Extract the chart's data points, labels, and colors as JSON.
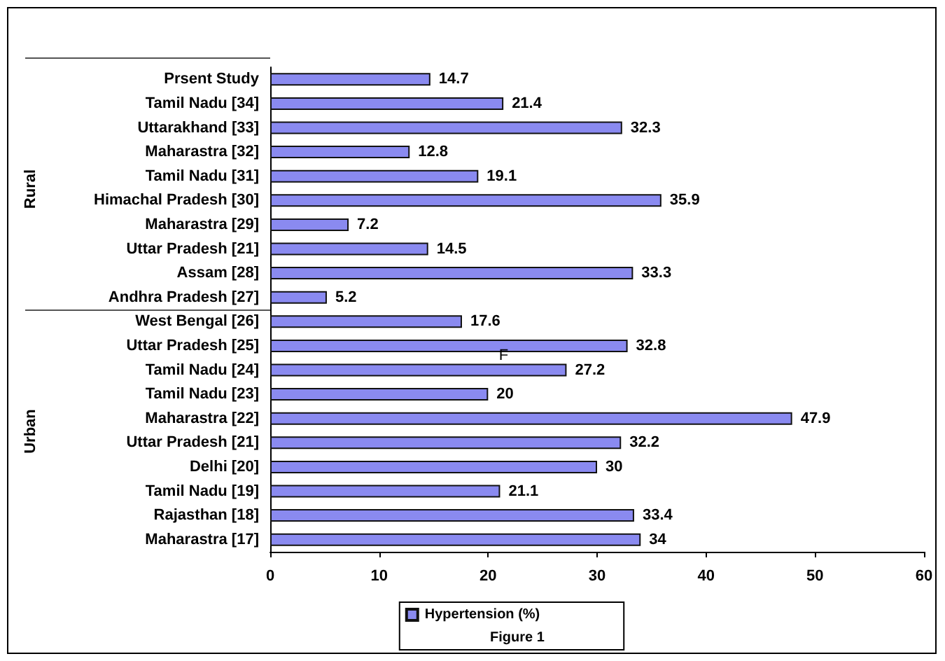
{
  "chart_data": {
    "type": "bar",
    "orientation": "horizontal",
    "categories": [
      "Prsent Study",
      "Tamil Nadu [34]",
      "Uttarakhand [33]",
      "Maharastra [32]",
      "Tamil Nadu [31]",
      "Himachal Pradesh [30]",
      "Maharastra [29]",
      "Uttar Pradesh [21]",
      "Assam [28]",
      "Andhra Pradesh [27]",
      "West Bengal [26]",
      "Uttar Pradesh [25]",
      "Tamil Nadu [24]",
      "Tamil Nadu [23]",
      "Maharastra [22]",
      "Uttar Pradesh [21]",
      "Delhi [20]",
      "Tamil Nadu [19]",
      "Rajasthan [18]",
      "Maharastra [17]"
    ],
    "series": [
      {
        "name": "Hypertension (%)",
        "color": "#8a8af0",
        "values": [
          14.7,
          21.4,
          32.3,
          12.8,
          19.1,
          35.9,
          7.2,
          14.5,
          33.3,
          5.2,
          17.6,
          32.8,
          27.2,
          20,
          47.9,
          32.2,
          30,
          21.1,
          33.4,
          34
        ]
      }
    ],
    "xlim": [
      0,
      60
    ],
    "xticks": [
      0,
      10,
      20,
      30,
      40,
      50,
      60
    ],
    "data_labels": true,
    "legend": "bottom",
    "grid": false,
    "annotations": [
      "Rural",
      "Urban",
      "F",
      "Figure 1"
    ]
  }
}
